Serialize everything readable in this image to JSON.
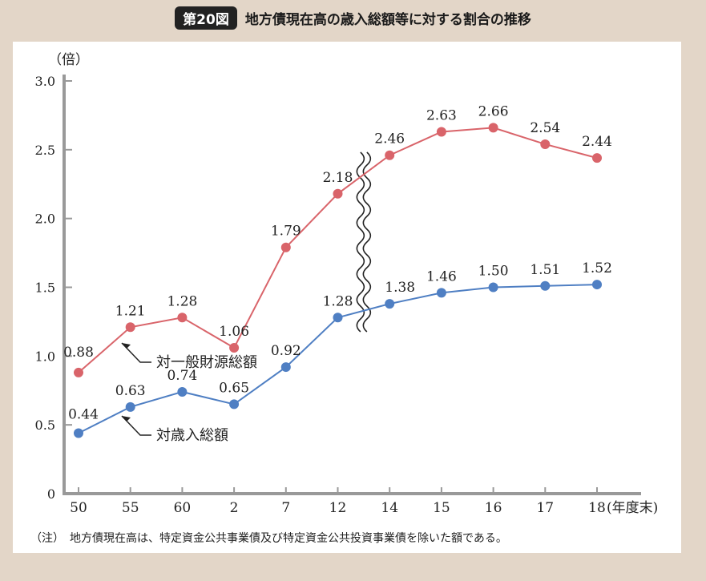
{
  "header": {
    "figure_number": "第20図",
    "title": "地方債現在高の歳入総額等に対する割合の推移"
  },
  "note": "（注）　地方債現在高は、特定資金公共事業債及び特定資金公共投資事業債を除いた額である。",
  "colors": {
    "series_general": "#d9646a",
    "series_revenue": "#4f7fc3",
    "axis": "#999999"
  },
  "chart_data": {
    "type": "line",
    "title": "地方債現在高の歳入総額等に対する割合の推移",
    "ylabel": "（倍）",
    "xlabel_suffix": "(年度末)",
    "categories": [
      "50",
      "55",
      "60",
      "2",
      "7",
      "12",
      "14",
      "15",
      "16",
      "17",
      "18"
    ],
    "ylim": [
      0,
      3.0
    ],
    "yticks": [
      "0",
      "0.5",
      "1.0",
      "1.5",
      "2.0",
      "2.5",
      "3.0"
    ],
    "axis_break_between": [
      "12",
      "14"
    ],
    "grid": false,
    "series": [
      {
        "name": "対一般財源総額",
        "values": [
          0.88,
          1.21,
          1.28,
          1.06,
          1.79,
          2.18,
          2.46,
          2.63,
          2.66,
          2.54,
          2.44
        ],
        "labels": [
          "0.88",
          "1.21",
          "1.28",
          "1.06",
          "1.79",
          "2.18",
          "2.46",
          "2.63",
          "2.66",
          "2.54",
          "2.44"
        ]
      },
      {
        "name": "対歳入総額",
        "values": [
          0.44,
          0.63,
          0.74,
          0.65,
          0.92,
          1.28,
          1.38,
          1.46,
          1.5,
          1.51,
          1.52
        ],
        "labels": [
          "0.44",
          "0.63",
          "0.74",
          "0.65",
          "0.92",
          "1.28",
          "1.38",
          "1.46",
          "1.50",
          "1.51",
          "1.52"
        ]
      }
    ]
  }
}
